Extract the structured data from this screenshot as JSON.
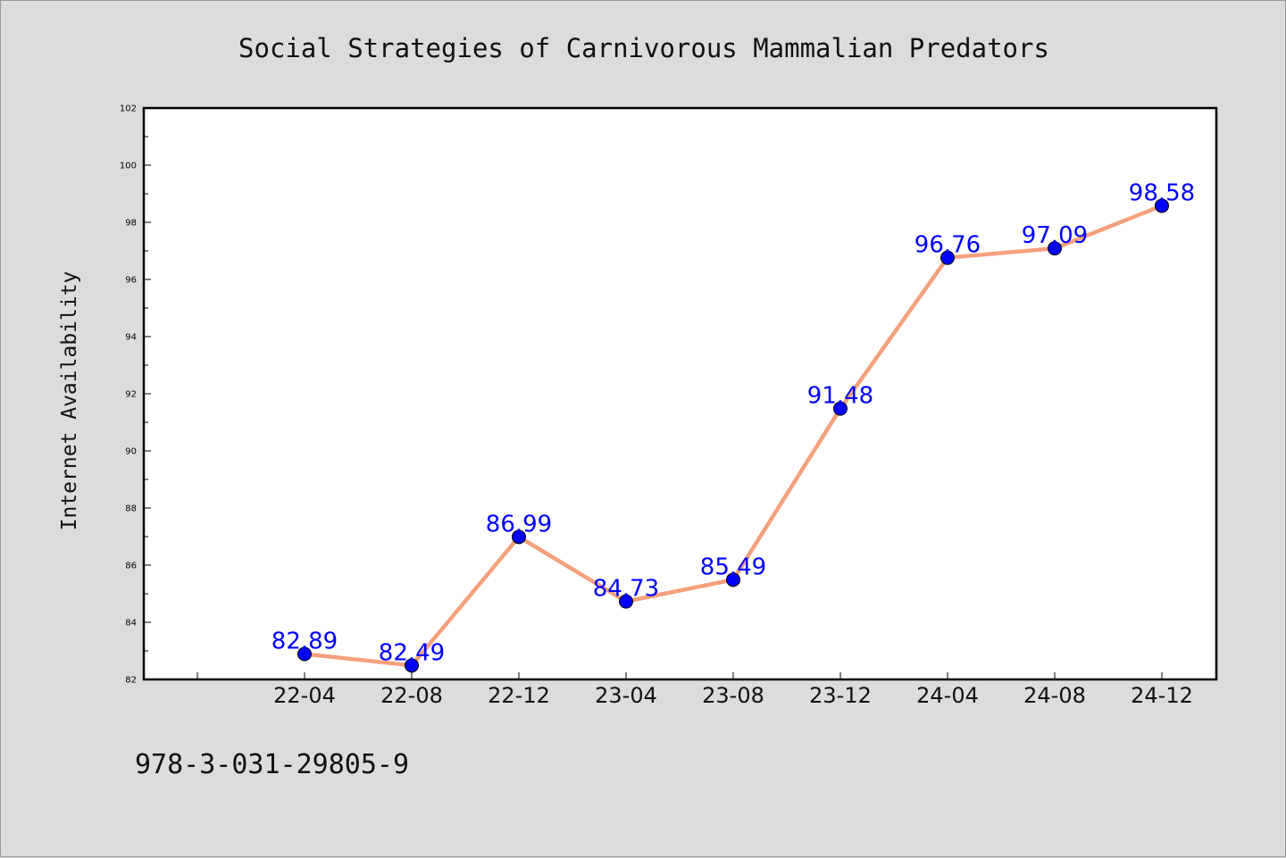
{
  "chart_data": {
    "type": "line",
    "title": "Social Strategies of Carnivorous Mammalian Predators",
    "xlabel": "",
    "ylabel": "Internet Availability",
    "categories": [
      "22-04",
      "22-08",
      "22-12",
      "23-04",
      "23-08",
      "23-12",
      "24-04",
      "24-08",
      "24-12"
    ],
    "series": [
      {
        "values": [
          82.89,
          82.49,
          86.99,
          84.73,
          85.49,
          91.48,
          96.76,
          97.09,
          98.58
        ],
        "labels": [
          "82.89",
          "82.49",
          "86.99",
          "84.73",
          "85.49",
          "91.48",
          "96.76",
          "97.09",
          "98.58"
        ],
        "line_color": "#f4a07c",
        "marker_color": "#0000ff"
      }
    ],
    "ylim": [
      82,
      102
    ],
    "yticks": [
      82,
      84,
      86,
      88,
      90,
      92,
      94,
      96,
      98,
      100,
      102
    ],
    "ytick_labels": [
      "82",
      "84",
      "86",
      "88",
      "90",
      "92",
      "94",
      "96",
      "98",
      "100",
      "102"
    ],
    "grid": false,
    "legend": "none",
    "label_color": "#0000ff"
  },
  "footnote": "978-3-031-29805-9",
  "colors": {
    "background": "#dcdcdc",
    "plot_background": "#ffffff",
    "axes": "#000000"
  }
}
